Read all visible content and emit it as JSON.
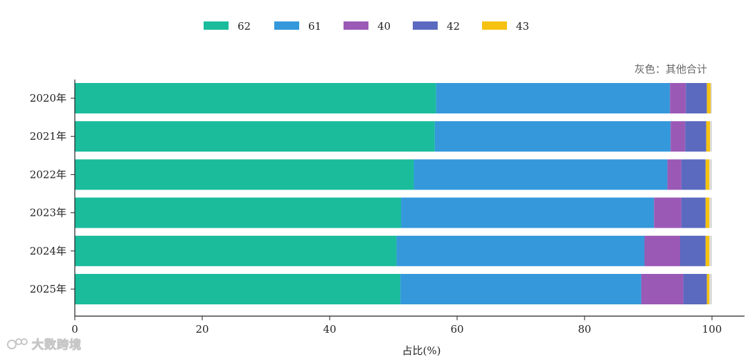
{
  "chart_data": {
    "type": "bar",
    "orientation": "horizontal",
    "stacked": true,
    "categories": [
      "2020年",
      "2021年",
      "2022年",
      "2023年",
      "2024年",
      "2025年"
    ],
    "series": [
      {
        "name": "62",
        "color": "#1abc9c",
        "values": [
          56.7,
          56.5,
          53.2,
          51.2,
          50.5,
          51.1
        ]
      },
      {
        "name": "61",
        "color": "#3498db",
        "values": [
          36.7,
          37.0,
          39.8,
          39.7,
          38.9,
          37.8
        ]
      },
      {
        "name": "40",
        "color": "#9b59b6",
        "values": [
          2.5,
          2.3,
          2.2,
          4.3,
          5.6,
          6.6
        ]
      },
      {
        "name": "42",
        "color": "#5b6abf",
        "values": [
          3.3,
          3.3,
          3.8,
          3.8,
          4.0,
          3.7
        ]
      },
      {
        "name": "43",
        "color": "#f5c211",
        "values": [
          0.6,
          0.6,
          0.6,
          0.6,
          0.6,
          0.4
        ]
      },
      {
        "color": "#dcdcdc",
        "values": [
          0.2,
          0.3,
          0.4,
          0.4,
          0.4,
          0.4
        ]
      }
    ],
    "note": "灰色：其他合计",
    "xlabel": "占比(%)",
    "ylabel": "",
    "xlim": [
      0,
      105
    ],
    "xticks": [
      0,
      20,
      40,
      60,
      80,
      100
    ],
    "grid": false,
    "legend_position": "top"
  },
  "watermark": {
    "text": "大数跨境",
    "icon": "logo-icon"
  }
}
